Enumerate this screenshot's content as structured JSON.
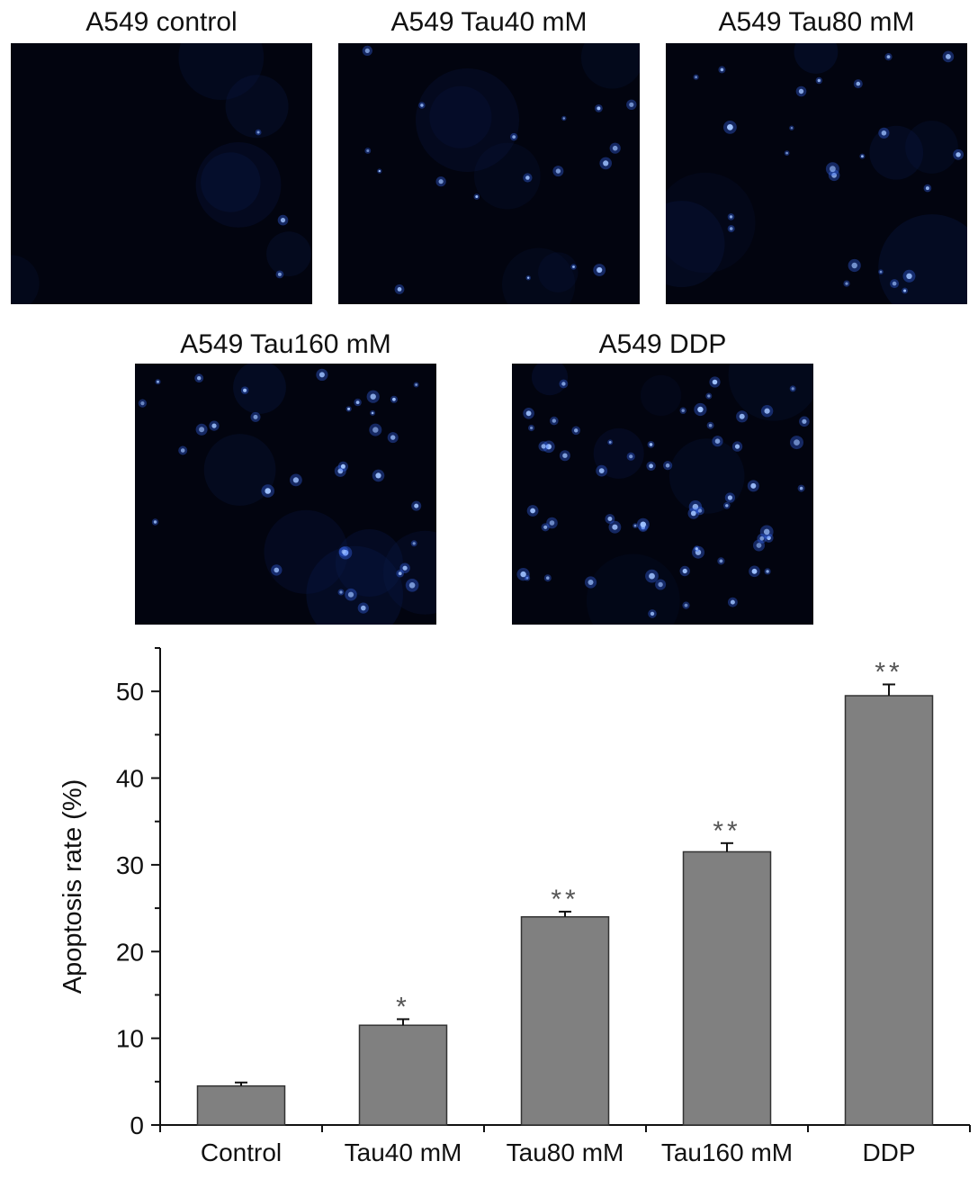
{
  "panels": [
    {
      "label": "A549 control",
      "density": 3
    },
    {
      "label": "A549 Tau40 mM",
      "density": 18
    },
    {
      "label": "A549 Tau80 mM",
      "density": 24
    },
    {
      "label": "A549 Tau160 mM",
      "density": 34
    },
    {
      "label": "A549 DDP",
      "density": 60
    }
  ],
  "colors": {
    "micrograph_bg": "#02040f",
    "cell_glow": "#3a6cff",
    "cell_core": "#9fc2ff",
    "bar_fill": "#808080",
    "bar_stroke": "#333333",
    "axis": "#111111"
  },
  "chart_data": {
    "type": "bar",
    "categories": [
      "Control",
      "Tau40 mM",
      "Tau80 mM",
      "Tau160 mM",
      "DDP"
    ],
    "values": [
      4.5,
      11.5,
      24,
      31.5,
      49.5
    ],
    "errors": [
      0.4,
      0.7,
      0.6,
      1.0,
      1.3
    ],
    "significance": [
      "",
      "*",
      "**",
      "**",
      "**"
    ],
    "ylabel": "Apoptosis rate (%)",
    "xlabel": "",
    "ylim": [
      0,
      55
    ],
    "yticks": [
      0,
      10,
      20,
      30,
      40,
      50
    ],
    "grid": false,
    "legend": "none"
  }
}
